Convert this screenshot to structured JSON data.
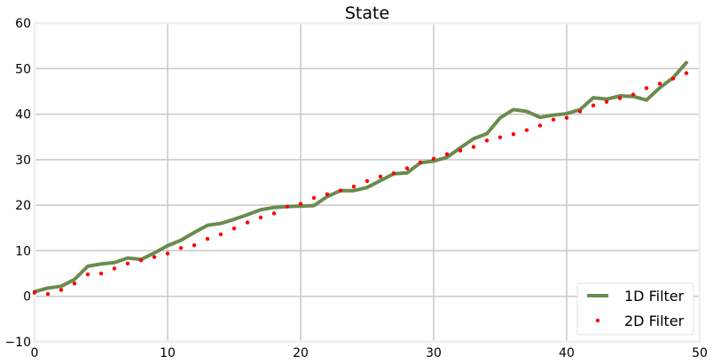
{
  "chart_data": {
    "type": "line",
    "title": "State",
    "xlabel": "",
    "ylabel": "",
    "xlim": [
      0,
      50
    ],
    "ylim": [
      -10,
      60
    ],
    "x_ticks": [
      0,
      10,
      20,
      30,
      40,
      50
    ],
    "y_ticks": [
      -10,
      0,
      10,
      20,
      30,
      40,
      50,
      60
    ],
    "x_tick_labels": [
      "0",
      "10",
      "20",
      "30",
      "40",
      "50"
    ],
    "y_tick_labels": [
      "−10",
      "0",
      "10",
      "20",
      "30",
      "40",
      "50",
      "60"
    ],
    "grid": true,
    "legend_position": "bottom-right",
    "series": [
      {
        "name": "1D Filter",
        "style": "line",
        "color": "#6a8b4f",
        "x": [
          0,
          1,
          2,
          3,
          4,
          5,
          6,
          7,
          8,
          9,
          10,
          11,
          12,
          13,
          14,
          15,
          16,
          17,
          18,
          19,
          20,
          21,
          22,
          23,
          24,
          25,
          26,
          27,
          28,
          29,
          30,
          31,
          32,
          33,
          34,
          35,
          36,
          37,
          38,
          39,
          40,
          41,
          42,
          43,
          44,
          45,
          46,
          47,
          48,
          49
        ],
        "values": [
          1.0,
          1.8,
          2.2,
          3.7,
          6.6,
          7.1,
          7.4,
          8.4,
          8.1,
          9.5,
          11.1,
          12.3,
          14.0,
          15.6,
          16.0,
          16.9,
          17.9,
          19.0,
          19.5,
          19.7,
          19.8,
          19.9,
          21.9,
          23.2,
          23.2,
          23.9,
          25.4,
          26.9,
          27.1,
          29.3,
          29.7,
          30.5,
          32.6,
          34.6,
          35.7,
          39.2,
          41.0,
          40.6,
          39.3,
          39.8,
          40.1,
          41.0,
          43.6,
          43.3,
          44.0,
          43.9,
          43.1,
          45.8,
          48.0,
          51.3
        ]
      },
      {
        "name": "2D Filter",
        "style": "markers",
        "color": "#ff0000",
        "x": [
          0,
          1,
          2,
          3,
          4,
          5,
          6,
          7,
          8,
          9,
          10,
          11,
          12,
          13,
          14,
          15,
          16,
          17,
          18,
          19,
          20,
          21,
          22,
          23,
          24,
          25,
          26,
          27,
          28,
          29,
          30,
          31,
          32,
          33,
          34,
          35,
          36,
          37,
          38,
          39,
          40,
          41,
          42,
          43,
          44,
          45,
          46,
          47,
          48,
          49
        ],
        "values": [
          0.8,
          0.5,
          1.4,
          2.8,
          4.8,
          5.0,
          6.1,
          7.2,
          7.9,
          8.6,
          9.4,
          10.6,
          11.2,
          12.6,
          13.6,
          14.9,
          16.2,
          17.3,
          18.2,
          19.7,
          20.3,
          21.6,
          22.4,
          23.2,
          24.1,
          25.3,
          26.3,
          27.0,
          28.1,
          29.4,
          30.2,
          31.2,
          32.0,
          32.8,
          34.2,
          34.9,
          35.6,
          36.5,
          37.5,
          38.8,
          39.2,
          40.6,
          41.9,
          42.7,
          43.5,
          44.3,
          45.7,
          46.7,
          47.8,
          49.0
        ]
      }
    ]
  }
}
